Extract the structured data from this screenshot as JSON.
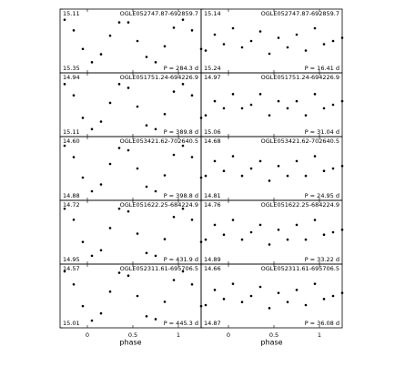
{
  "chart_data": [
    {
      "type": "scatter",
      "title": "OGLE052747.87-692859.7",
      "annotation": "P = 284.3 d",
      "xlim": [
        -0.3,
        1.25
      ],
      "xticks": [
        0,
        0.5,
        1
      ],
      "ylim": [
        15.35,
        15.11
      ],
      "yticks": [
        15.11,
        15.35
      ],
      "x": [
        -0.25,
        -0.15,
        -0.05,
        0.05,
        0.15,
        0.25,
        0.35,
        0.45,
        0.55,
        0.65,
        0.75,
        0.85,
        0.95,
        1.05,
        1.15,
        1.25
      ],
      "values": [
        15.15,
        15.19,
        15.26,
        15.31,
        15.28,
        15.21,
        15.16,
        15.16,
        15.23,
        15.29,
        15.31,
        15.25,
        15.18,
        15.15,
        15.19,
        15.26
      ],
      "color": "#000000"
    },
    {
      "type": "scatter",
      "title": "OGLE052747.87-692859.7",
      "annotation": "P = 16.41 d",
      "xlim": [
        -0.3,
        1.25
      ],
      "xticks": [
        0,
        0.5,
        1
      ],
      "ylim": [
        15.24,
        15.14
      ],
      "yticks": [
        15.14,
        15.24
      ],
      "x": [
        -0.25,
        -0.15,
        -0.05,
        0.05,
        0.15,
        0.25,
        0.35,
        0.45,
        0.55,
        0.65,
        0.75,
        0.85,
        0.95,
        1.05,
        1.15,
        1.25
      ],
      "values": [
        15.205,
        15.18,
        15.195,
        15.17,
        15.2,
        15.19,
        15.175,
        15.21,
        15.185,
        15.2,
        15.18,
        15.205,
        15.17,
        15.195,
        15.19,
        15.185
      ],
      "color": "#000000"
    },
    {
      "type": "scatter",
      "title": "OGLE051751.24-694226.9",
      "annotation": "P = 389.8 d",
      "xlim": [
        -0.3,
        1.25
      ],
      "xticks": [
        0,
        0.5,
        1
      ],
      "ylim": [
        15.11,
        14.94
      ],
      "yticks": [
        14.94,
        15.11
      ],
      "x": [
        -0.25,
        -0.15,
        -0.05,
        0.05,
        0.15,
        0.25,
        0.35,
        0.45,
        0.55,
        0.65,
        0.75,
        0.85,
        0.95,
        1.05,
        1.15,
        1.25
      ],
      "values": [
        14.97,
        15.0,
        15.06,
        15.09,
        15.07,
        15.02,
        14.97,
        14.98,
        15.03,
        15.08,
        15.09,
        15.05,
        14.99,
        14.97,
        15.0,
        15.06
      ],
      "color": "#000000"
    },
    {
      "type": "scatter",
      "title": "OGLE051751.24-694226.9",
      "annotation": "P = 31.04 d",
      "xlim": [
        -0.3,
        1.25
      ],
      "xticks": [
        0,
        0.5,
        1
      ],
      "ylim": [
        15.06,
        14.97
      ],
      "yticks": [
        14.97,
        15.06
      ],
      "x": [
        -0.25,
        -0.15,
        -0.05,
        0.05,
        0.15,
        0.25,
        0.35,
        0.45,
        0.55,
        0.65,
        0.75,
        0.85,
        0.95,
        1.05,
        1.15,
        1.25
      ],
      "values": [
        15.03,
        15.01,
        15.02,
        15.0,
        15.02,
        15.015,
        15.0,
        15.03,
        15.01,
        15.02,
        15.01,
        15.03,
        15.0,
        15.02,
        15.015,
        15.01
      ],
      "color": "#000000"
    },
    {
      "type": "scatter",
      "title": "OGLE053421.62-702640.5",
      "annotation": "P = 398.8 d",
      "xlim": [
        -0.3,
        1.25
      ],
      "xticks": [
        0,
        0.5,
        1
      ],
      "ylim": [
        14.88,
        14.6
      ],
      "yticks": [
        {
          "value": 14.6,
          "label": "14.60"
        },
        14.88
      ],
      "x": [
        -0.25,
        -0.15,
        -0.05,
        0.05,
        0.15,
        0.25,
        0.35,
        0.45,
        0.55,
        0.65,
        0.75,
        0.85,
        0.95,
        1.05,
        1.15,
        1.25
      ],
      "values": [
        14.64,
        14.69,
        14.78,
        14.84,
        14.81,
        14.72,
        14.65,
        14.66,
        14.74,
        14.82,
        14.84,
        14.77,
        14.68,
        14.64,
        14.69,
        14.78
      ],
      "color": "#000000"
    },
    {
      "type": "scatter",
      "title": "OGLE053421.62-702640.5",
      "annotation": "P = 24.95 d",
      "xlim": [
        -0.3,
        1.25
      ],
      "xticks": [
        0,
        0.5,
        1
      ],
      "ylim": [
        14.81,
        14.68
      ],
      "yticks": [
        14.68,
        14.81
      ],
      "x": [
        -0.25,
        -0.15,
        -0.05,
        0.05,
        0.15,
        0.25,
        0.35,
        0.45,
        0.55,
        0.65,
        0.75,
        0.85,
        0.95,
        1.05,
        1.15,
        1.25
      ],
      "values": [
        14.76,
        14.73,
        14.75,
        14.72,
        14.76,
        14.745,
        14.73,
        14.77,
        14.74,
        14.76,
        14.73,
        14.76,
        14.72,
        14.75,
        14.745,
        14.74
      ],
      "color": "#000000"
    },
    {
      "type": "scatter",
      "title": "OGLE051622.25-684224.9",
      "annotation": "P = 431.9 d",
      "xlim": [
        -0.3,
        1.25
      ],
      "xticks": [
        0,
        0.5,
        1
      ],
      "ylim": [
        14.95,
        14.72
      ],
      "yticks": [
        14.72,
        14.95
      ],
      "x": [
        -0.25,
        -0.15,
        -0.05,
        0.05,
        0.15,
        0.25,
        0.35,
        0.45,
        0.55,
        0.65,
        0.75,
        0.85,
        0.95,
        1.05,
        1.15,
        1.25
      ],
      "values": [
        14.75,
        14.79,
        14.87,
        14.92,
        14.9,
        14.82,
        14.75,
        14.76,
        14.84,
        14.91,
        14.92,
        14.86,
        14.78,
        14.75,
        14.79,
        14.87
      ],
      "color": "#000000"
    },
    {
      "type": "scatter",
      "title": "OGLE051622.25-684224.9",
      "annotation": "P = 33.22 d",
      "xlim": [
        -0.3,
        1.25
      ],
      "xticks": [
        0,
        0.5,
        1
      ],
      "ylim": [
        14.89,
        14.76
      ],
      "yticks": [
        14.76,
        14.89
      ],
      "x": [
        -0.25,
        -0.15,
        -0.05,
        0.05,
        0.15,
        0.25,
        0.35,
        0.45,
        0.55,
        0.65,
        0.75,
        0.85,
        0.95,
        1.05,
        1.15,
        1.25
      ],
      "values": [
        14.84,
        14.81,
        14.83,
        14.8,
        14.84,
        14.825,
        14.81,
        14.85,
        14.82,
        14.84,
        14.81,
        14.84,
        14.8,
        14.83,
        14.825,
        14.82
      ],
      "color": "#000000"
    },
    {
      "type": "scatter",
      "title": "OGLE052311.61-695706.5",
      "annotation": "P = 445.3 d",
      "xlim": [
        -0.3,
        1.25
      ],
      "xticks": [
        0,
        0.5,
        1
      ],
      "ylim": [
        15.01,
        14.57
      ],
      "yticks": [
        14.57,
        15.01
      ],
      "xlabel": "phase",
      "x": [
        -0.25,
        -0.15,
        -0.05,
        0.05,
        0.15,
        0.25,
        0.35,
        0.45,
        0.55,
        0.65,
        0.75,
        0.85,
        0.95,
        1.05,
        1.15,
        1.25
      ],
      "values": [
        14.62,
        14.71,
        14.86,
        14.96,
        14.91,
        14.76,
        14.63,
        14.65,
        14.79,
        14.93,
        14.95,
        14.83,
        14.68,
        14.62,
        14.71,
        14.86
      ],
      "color": "#000000"
    },
    {
      "type": "scatter",
      "title": "OGLE052311.61-695706.5",
      "annotation": "P = 36.08 d",
      "xlim": [
        -0.3,
        1.25
      ],
      "xticks": [
        0,
        0.5,
        1
      ],
      "ylim": [
        14.87,
        14.66
      ],
      "yticks": [
        14.66,
        14.87
      ],
      "xlabel": "phase",
      "x": [
        -0.25,
        -0.15,
        -0.05,
        0.05,
        0.15,
        0.25,
        0.35,
        0.45,
        0.55,
        0.65,
        0.75,
        0.85,
        0.95,
        1.05,
        1.15,
        1.25
      ],
      "values": [
        14.795,
        14.745,
        14.775,
        14.725,
        14.785,
        14.765,
        14.735,
        14.805,
        14.755,
        14.785,
        14.745,
        14.795,
        14.725,
        14.775,
        14.765,
        14.755
      ],
      "color": "#000000"
    }
  ]
}
